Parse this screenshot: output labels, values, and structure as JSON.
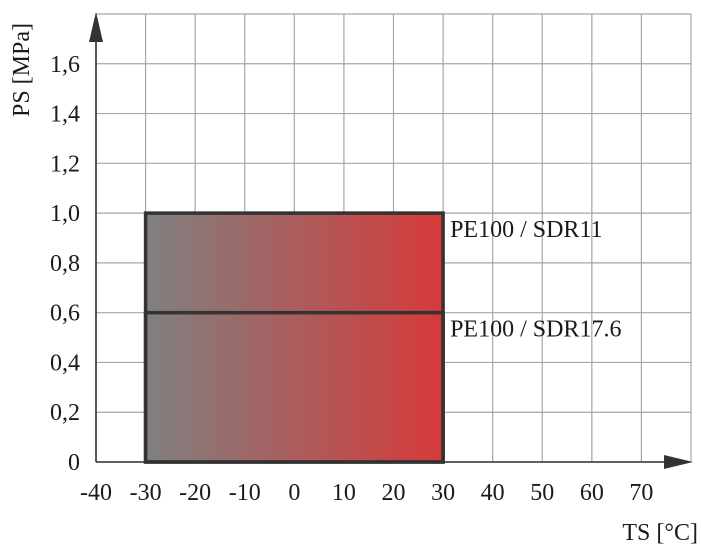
{
  "chart_data": {
    "type": "area",
    "title": "",
    "xlabel": "TS [°C]",
    "ylabel": "PS [MPa]",
    "xlim": [
      -40,
      80
    ],
    "ylim": [
      0,
      1.8
    ],
    "x_ticks": [
      -40,
      -30,
      -20,
      -10,
      0,
      10,
      20,
      30,
      40,
      50,
      60,
      70
    ],
    "x_tick_labels": [
      "-40",
      "-30",
      "-20",
      "-10",
      "0",
      "10",
      "20",
      "30",
      "40",
      "50",
      "60",
      "70"
    ],
    "y_ticks": [
      0,
      0.2,
      0.4,
      0.6,
      0.8,
      1.0,
      1.2,
      1.4,
      1.6
    ],
    "y_tick_labels": [
      "0",
      "0,2",
      "0,4",
      "0,6",
      "0,8",
      "1,0",
      "1,2",
      "1,4",
      "1,6"
    ],
    "grid": true,
    "gradient": {
      "from": "#808080",
      "to": "#d63a3a"
    },
    "series": [
      {
        "name": "PE100 / SDR11",
        "x": [
          -30,
          30
        ],
        "y": [
          0,
          1.0
        ]
      },
      {
        "name": "PE100 / SDR17.6",
        "x": [
          -30,
          30
        ],
        "y": [
          0,
          0.6
        ]
      }
    ]
  }
}
